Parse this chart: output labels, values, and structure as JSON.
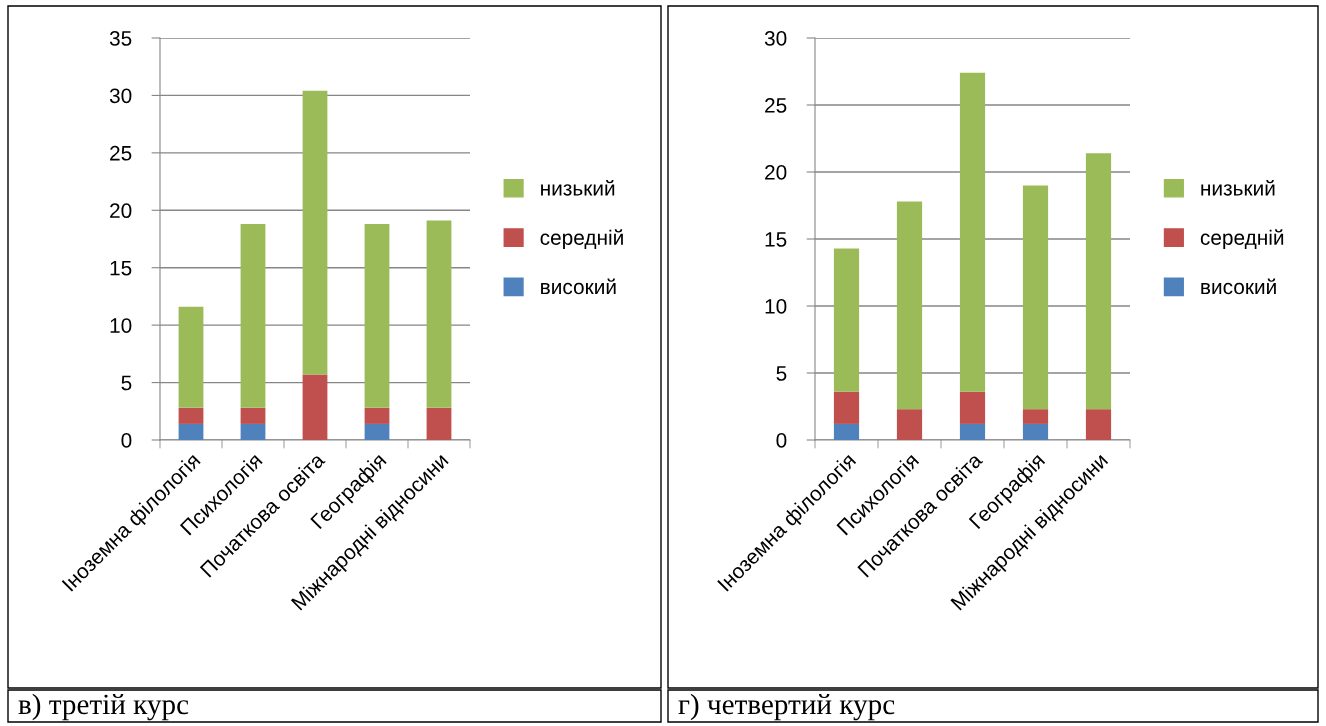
{
  "chart_data": [
    {
      "type": "bar",
      "stacked": true,
      "categories": [
        "Іноземна філологія",
        "Психологія",
        "Початкова освіта",
        "Географія",
        "Міжнародні відносини"
      ],
      "series": [
        {
          "name": "високий",
          "color": "#4f81bd",
          "values": [
            1.4,
            1.4,
            0,
            1.4,
            0
          ]
        },
        {
          "name": "середній",
          "color": "#c0504d",
          "values": [
            1.4,
            1.4,
            5.7,
            1.4,
            2.8
          ]
        },
        {
          "name": "низький",
          "color": "#9bbb59",
          "values": [
            8.8,
            16.0,
            24.7,
            16.0,
            16.3
          ]
        }
      ],
      "ylim": [
        0,
        35
      ],
      "yticks": [
        0,
        5,
        10,
        15,
        20,
        25,
        30,
        35
      ],
      "grid": "y",
      "legend": "right",
      "annotations": [
        "в) третій курс"
      ]
    },
    {
      "type": "bar",
      "stacked": true,
      "categories": [
        "Іноземна філологія",
        "Психологія",
        "Початкова освіта",
        "Географія",
        "Міжнародні відносини"
      ],
      "series": [
        {
          "name": "високий",
          "color": "#4f81bd",
          "values": [
            1.2,
            0,
            1.2,
            1.2,
            0
          ]
        },
        {
          "name": "середній",
          "color": "#c0504d",
          "values": [
            2.4,
            2.3,
            2.4,
            1.1,
            2.3
          ]
        },
        {
          "name": "низький",
          "color": "#9bbb59",
          "values": [
            10.7,
            15.5,
            23.8,
            16.7,
            19.1
          ]
        }
      ],
      "ylim": [
        0,
        30
      ],
      "yticks": [
        0,
        5,
        10,
        15,
        20,
        25,
        30
      ],
      "grid": "y",
      "legend": "right",
      "annotations": [
        "г) четвертий курс"
      ]
    }
  ]
}
